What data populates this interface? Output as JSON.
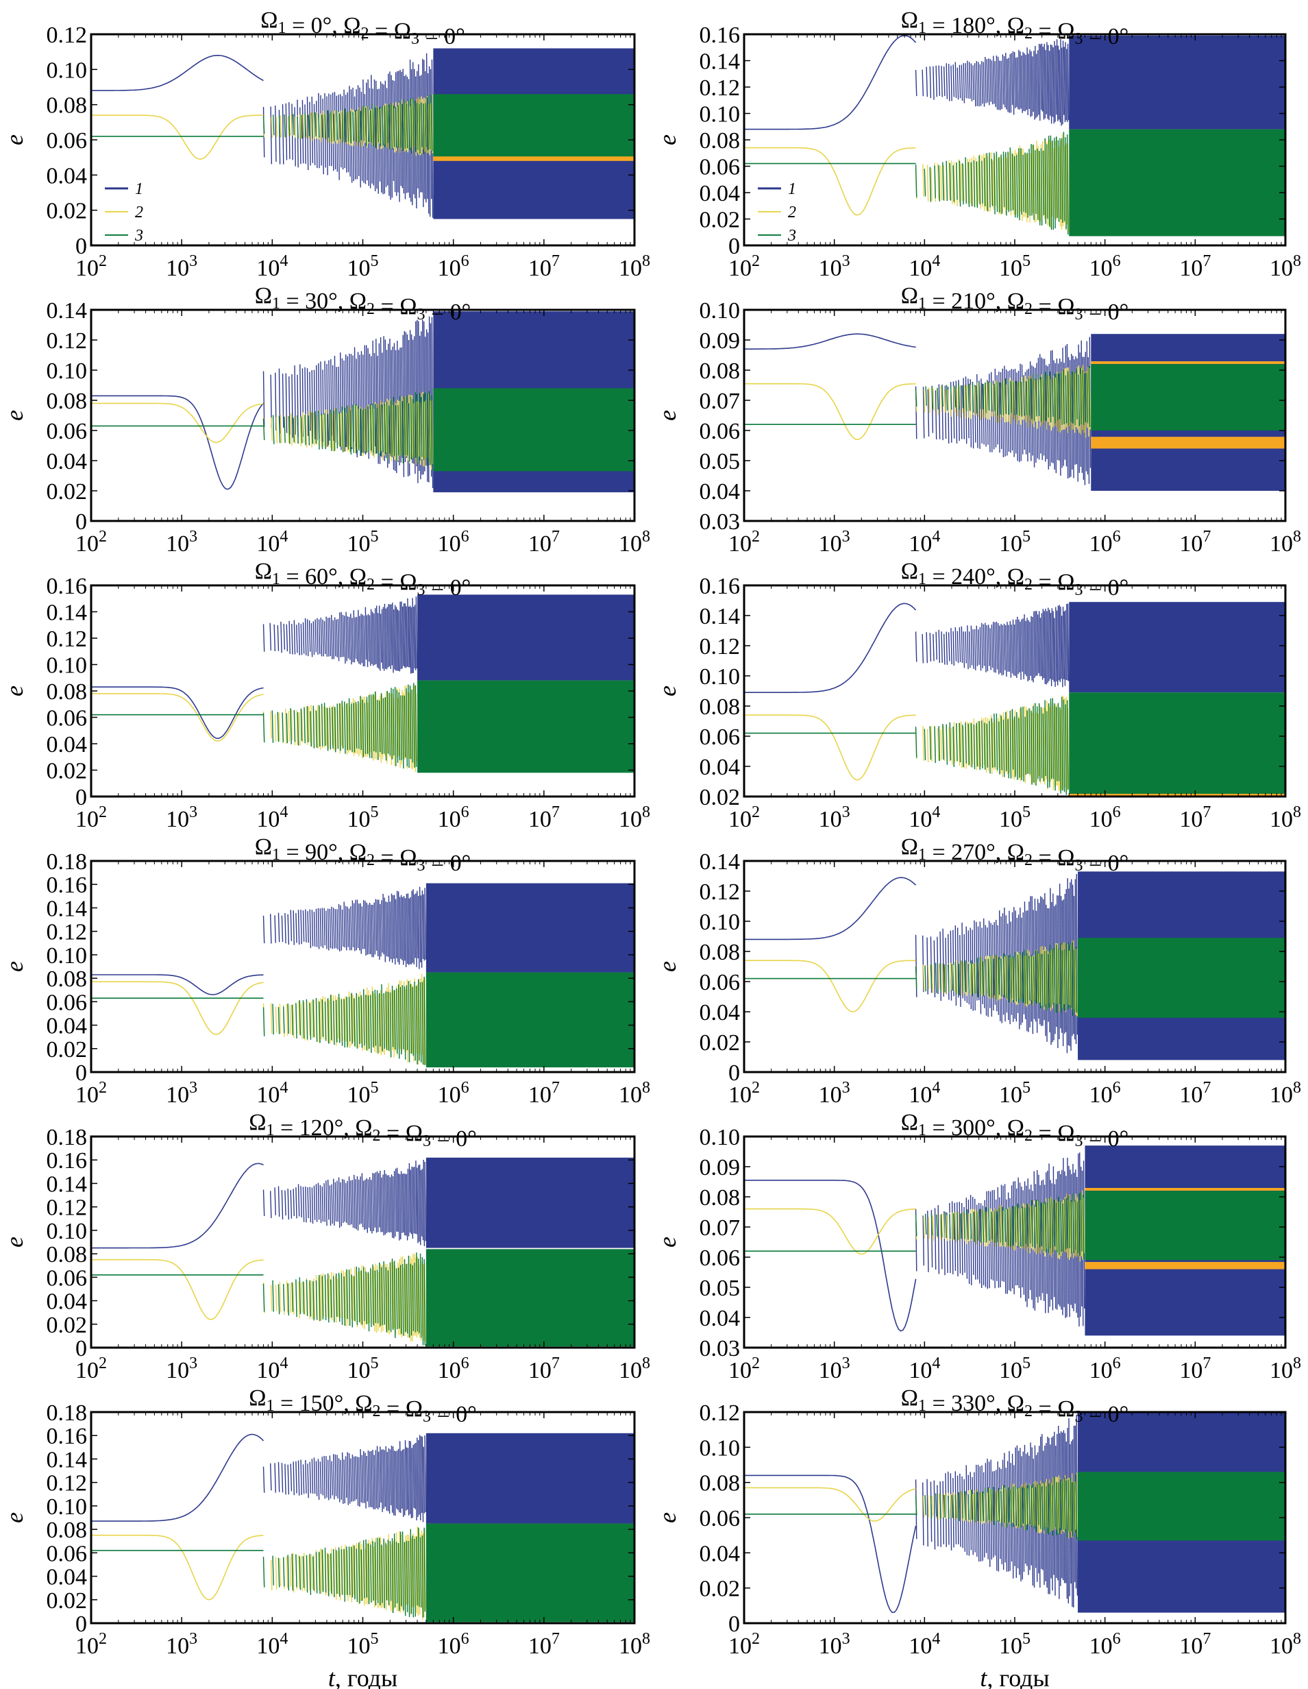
{
  "figure": {
    "xlabel_italic": "t",
    "xlabel_rest": ", годы",
    "ylabel": "e",
    "series_colors": {
      "1": "#2e3a8e",
      "2": "#e8d44a",
      "3": "#0a7a3a",
      "overlap": "#f5a623"
    }
  },
  "chart_data": [
    {
      "id": "p0",
      "type": "line",
      "title": "Ω₁ = 0°, Ω₂ = Ω₃ = 0°",
      "omega1": 0,
      "xscale": "log",
      "xlim": [
        100,
        100000000
      ],
      "ylim": [
        0,
        0.12
      ],
      "yticks": [
        "0",
        "0.02",
        "0.04",
        "0.06",
        "0.08",
        "0.10",
        "0.12"
      ],
      "xticks": [
        "10^2",
        "10^3",
        "10^4",
        "10^5",
        "10^6",
        "10^7",
        "10^8"
      ],
      "xlabel": "",
      "ylabel": "e",
      "legend": {
        "placement": "lower-left",
        "entries": [
          "1",
          "2",
          "3"
        ]
      },
      "series": [
        {
          "name": "1",
          "start": 0.088,
          "early_peak": {
            "t": 2500,
            "e": 0.108
          },
          "first_min": {
            "t": 11000,
            "e": 0.018
          },
          "final_band": [
            0.015,
            0.112
          ]
        },
        {
          "name": "2",
          "start": 0.074,
          "first_min": {
            "t": 1600,
            "e": 0.049
          },
          "final_band": [
            0.049,
            0.086
          ]
        },
        {
          "name": "3",
          "start": 0.062,
          "final_band": [
            0.05,
            0.086
          ]
        }
      ],
      "onset_chaos": 600000
    },
    {
      "id": "p1",
      "type": "line",
      "title": "Ω₁ = 180°, Ω₂ = Ω₃ = 0°",
      "omega1": 180,
      "xscale": "log",
      "xlim": [
        100,
        100000000
      ],
      "ylim": [
        0,
        0.16
      ],
      "yticks": [
        "0",
        "0.02",
        "0.04",
        "0.06",
        "0.08",
        "0.10",
        "0.12",
        "0.14",
        "0.16"
      ],
      "xticks": [
        "10^2",
        "10^3",
        "10^4",
        "10^5",
        "10^6",
        "10^7",
        "10^8"
      ],
      "xlabel": "",
      "ylabel": "e",
      "legend": {
        "placement": "lower-left",
        "entries": [
          "1",
          "2",
          "3"
        ]
      },
      "series": [
        {
          "name": "1",
          "start": 0.088,
          "early_peak": {
            "t": 6000,
            "e": 0.159
          },
          "first_min": {
            "t": 13000,
            "e": 0.062
          },
          "final_band": [
            0.088,
            0.159
          ]
        },
        {
          "name": "2",
          "start": 0.074,
          "first_min": {
            "t": 1800,
            "e": 0.023
          },
          "final_band": [
            0.007,
            0.088
          ]
        },
        {
          "name": "3",
          "start": 0.062,
          "final_band": [
            0.007,
            0.088
          ]
        }
      ],
      "onset_chaos": 400000
    },
    {
      "id": "p2",
      "type": "line",
      "title": "Ω₁ = 30°, Ω₂ = Ω₃ = 0°",
      "omega1": 30,
      "xscale": "log",
      "xlim": [
        100,
        100000000
      ],
      "ylim": [
        0,
        0.14
      ],
      "yticks": [
        "0",
        "0.02",
        "0.04",
        "0.06",
        "0.08",
        "0.10",
        "0.12",
        "0.14"
      ],
      "xticks": [
        "10^2",
        "10^3",
        "10^4",
        "10^5",
        "10^6",
        "10^7",
        "10^8"
      ],
      "xlabel": "",
      "ylabel": "e",
      "legend": null,
      "series": [
        {
          "name": "1",
          "start": 0.083,
          "early_peak": {
            "t": 11000,
            "e": 0.14
          },
          "first_min": {
            "t": 3200,
            "e": 0.021
          },
          "final_band": [
            0.019,
            0.139
          ]
        },
        {
          "name": "2",
          "start": 0.078,
          "first_min": {
            "t": 2400,
            "e": 0.052
          },
          "final_band": [
            0.033,
            0.088
          ]
        },
        {
          "name": "3",
          "start": 0.063,
          "final_band": [
            0.033,
            0.088
          ]
        }
      ],
      "onset_chaos": 600000
    },
    {
      "id": "p3",
      "type": "line",
      "title": "Ω₁ = 210°, Ω₂ = Ω₃ = 0°",
      "omega1": 210,
      "xscale": "log",
      "xlim": [
        100,
        100000000
      ],
      "ylim": [
        0.03,
        0.1
      ],
      "yticks": [
        "0.03",
        "0.04",
        "0.05",
        "0.06",
        "0.07",
        "0.08",
        "0.09",
        "0.10"
      ],
      "xticks": [
        "10^2",
        "10^3",
        "10^4",
        "10^5",
        "10^6",
        "10^7",
        "10^8"
      ],
      "xlabel": "",
      "ylabel": "e",
      "legend": null,
      "series": [
        {
          "name": "1",
          "start": 0.087,
          "early_peak": {
            "t": 1800,
            "e": 0.092
          },
          "first_min": {
            "t": 9000,
            "e": 0.04
          },
          "final_band": [
            0.04,
            0.092
          ]
        },
        {
          "name": "2",
          "start": 0.0755,
          "first_min": {
            "t": 1800,
            "e": 0.057
          },
          "final_band": [
            0.057,
            0.0825
          ]
        },
        {
          "name": "3",
          "start": 0.062,
          "final_band": [
            0.06,
            0.082
          ]
        }
      ],
      "onset_chaos": 700000
    },
    {
      "id": "p4",
      "type": "line",
      "title": "Ω₁ = 60°, Ω₂ = Ω₃ = 0°",
      "omega1": 60,
      "xscale": "log",
      "xlim": [
        100,
        100000000
      ],
      "ylim": [
        0,
        0.16
      ],
      "yticks": [
        "0",
        "0.02",
        "0.04",
        "0.06",
        "0.08",
        "0.10",
        "0.12",
        "0.14",
        "0.16"
      ],
      "xticks": [
        "10^2",
        "10^3",
        "10^4",
        "10^5",
        "10^6",
        "10^7",
        "10^8"
      ],
      "xlabel": "",
      "ylabel": "e",
      "legend": null,
      "series": [
        {
          "name": "1",
          "start": 0.083,
          "early_peak": {
            "t": 11000,
            "e": 0.152
          },
          "first_min": {
            "t": 2500,
            "e": 0.044
          },
          "final_band": [
            0.088,
            0.153
          ]
        },
        {
          "name": "2",
          "start": 0.078,
          "first_min": {
            "t": 2500,
            "e": 0.042
          },
          "final_band": [
            0.018,
            0.088
          ]
        },
        {
          "name": "3",
          "start": 0.062,
          "final_band": [
            0.018,
            0.088
          ]
        }
      ],
      "onset_chaos": 400000
    },
    {
      "id": "p5",
      "type": "line",
      "title": "Ω₁ = 240°, Ω₂ = Ω₃ = 0°",
      "omega1": 240,
      "xscale": "log",
      "xlim": [
        100,
        100000000
      ],
      "ylim": [
        0.02,
        0.16
      ],
      "yticks": [
        "0.02",
        "0.04",
        "0.06",
        "0.08",
        "0.10",
        "0.12",
        "0.14",
        "0.16"
      ],
      "xticks": [
        "10^2",
        "10^3",
        "10^4",
        "10^5",
        "10^6",
        "10^7",
        "10^8"
      ],
      "xlabel": "",
      "ylabel": "e",
      "legend": null,
      "series": [
        {
          "name": "1",
          "start": 0.089,
          "early_peak": {
            "t": 6000,
            "e": 0.148
          },
          "first_min": {
            "t": 13000,
            "e": 0.044
          },
          "final_band": [
            0.089,
            0.149
          ]
        },
        {
          "name": "2",
          "start": 0.074,
          "first_min": {
            "t": 1800,
            "e": 0.031
          },
          "final_band": [
            0.02,
            0.089
          ]
        },
        {
          "name": "3",
          "start": 0.062,
          "final_band": [
            0.02,
            0.089
          ]
        }
      ],
      "onset_chaos": 400000
    },
    {
      "id": "p6",
      "type": "line",
      "title": "Ω₁ = 90°, Ω₂ = Ω₃ = 0°",
      "omega1": 90,
      "xscale": "log",
      "xlim": [
        100,
        100000000
      ],
      "ylim": [
        0,
        0.18
      ],
      "yticks": [
        "0",
        "0.02",
        "0.04",
        "0.06",
        "0.08",
        "0.10",
        "0.12",
        "0.14",
        "0.16",
        "0.18"
      ],
      "xticks": [
        "10^2",
        "10^3",
        "10^4",
        "10^5",
        "10^6",
        "10^7",
        "10^8"
      ],
      "xlabel": "",
      "ylabel": "e",
      "legend": null,
      "series": [
        {
          "name": "1",
          "start": 0.083,
          "early_peak": {
            "t": 10000,
            "e": 0.155
          },
          "first_min": {
            "t": 2200,
            "e": 0.066
          },
          "final_band": [
            0.085,
            0.161
          ]
        },
        {
          "name": "2",
          "start": 0.077,
          "first_min": {
            "t": 2400,
            "e": 0.032
          },
          "final_band": [
            0.004,
            0.085
          ]
        },
        {
          "name": "3",
          "start": 0.063,
          "final_band": [
            0.004,
            0.085
          ]
        }
      ],
      "onset_chaos": 500000
    },
    {
      "id": "p7",
      "type": "line",
      "title": "Ω₁ = 270°, Ω₂ = Ω₃ = 0°",
      "omega1": 270,
      "xscale": "log",
      "xlim": [
        100,
        100000000
      ],
      "ylim": [
        0,
        0.14
      ],
      "yticks": [
        "0",
        "0.02",
        "0.04",
        "0.06",
        "0.08",
        "0.10",
        "0.12",
        "0.14"
      ],
      "xticks": [
        "10^2",
        "10^3",
        "10^4",
        "10^5",
        "10^6",
        "10^7",
        "10^8"
      ],
      "xlabel": "",
      "ylabel": "e",
      "legend": null,
      "series": [
        {
          "name": "1",
          "start": 0.088,
          "early_peak": {
            "t": 5500,
            "e": 0.129
          },
          "first_min": {
            "t": 12000,
            "e": 0.015
          },
          "final_band": [
            0.008,
            0.133
          ]
        },
        {
          "name": "2",
          "start": 0.074,
          "first_min": {
            "t": 1600,
            "e": 0.04
          },
          "final_band": [
            0.036,
            0.089
          ]
        },
        {
          "name": "3",
          "start": 0.062,
          "final_band": [
            0.036,
            0.089
          ]
        }
      ],
      "onset_chaos": 500000
    },
    {
      "id": "p8",
      "type": "line",
      "title": "Ω₁ = 120°, Ω₂ = Ω₃ = 0°",
      "omega1": 120,
      "xscale": "log",
      "xlim": [
        100,
        100000000
      ],
      "ylim": [
        0,
        0.18
      ],
      "yticks": [
        "0",
        "0.02",
        "0.04",
        "0.06",
        "0.08",
        "0.10",
        "0.12",
        "0.14",
        "0.16",
        "0.18"
      ],
      "xticks": [
        "10^2",
        "10^3",
        "10^4",
        "10^5",
        "10^6",
        "10^7",
        "10^8"
      ],
      "xlabel": "",
      "ylabel": "e",
      "legend": null,
      "series": [
        {
          "name": "1",
          "start": 0.085,
          "early_peak": {
            "t": 7000,
            "e": 0.157
          },
          "first_min": {
            "t": 15000,
            "e": 0.075
          },
          "final_band": [
            0.085,
            0.162
          ]
        },
        {
          "name": "2",
          "start": 0.075,
          "first_min": {
            "t": 2100,
            "e": 0.024
          },
          "final_band": [
            0.001,
            0.084
          ]
        },
        {
          "name": "3",
          "start": 0.062,
          "final_band": [
            0.001,
            0.084
          ]
        }
      ],
      "onset_chaos": 500000
    },
    {
      "id": "p9",
      "type": "line",
      "title": "Ω₁ = 300°, Ω₂ = Ω₃ = 0°",
      "omega1": 300,
      "xscale": "log",
      "xlim": [
        100,
        100000000
      ],
      "ylim": [
        0.03,
        0.1
      ],
      "yticks": [
        "0.03",
        "0.04",
        "0.05",
        "0.06",
        "0.07",
        "0.08",
        "0.09",
        "0.10"
      ],
      "xticks": [
        "10^2",
        "10^3",
        "10^4",
        "10^5",
        "10^6",
        "10^7",
        "10^8"
      ],
      "xlabel": "",
      "ylabel": "e",
      "legend": null,
      "series": [
        {
          "name": "1",
          "start": 0.0855,
          "early_peak": {
            "t": 15000,
            "e": 0.095
          },
          "first_min": {
            "t": 5500,
            "e": 0.0355
          },
          "final_band": [
            0.034,
            0.097
          ]
        },
        {
          "name": "2",
          "start": 0.076,
          "first_min": {
            "t": 2000,
            "e": 0.061
          },
          "final_band": [
            0.0575,
            0.0825
          ]
        },
        {
          "name": "3",
          "start": 0.062,
          "final_band": [
            0.059,
            0.082
          ]
        }
      ],
      "onset_chaos": 600000
    },
    {
      "id": "p10",
      "type": "line",
      "title": "Ω₁ = 150°, Ω₂ = Ω₃ = 0°",
      "omega1": 150,
      "xscale": "log",
      "xlim": [
        100,
        100000000
      ],
      "ylim": [
        0,
        0.18
      ],
      "yticks": [
        "0",
        "0.02",
        "0.04",
        "0.06",
        "0.08",
        "0.10",
        "0.12",
        "0.14",
        "0.16",
        "0.18"
      ],
      "xticks": [
        "10^2",
        "10^3",
        "10^4",
        "10^5",
        "10^6",
        "10^7",
        "10^8"
      ],
      "xlabel": "t, годы",
      "ylabel": "e",
      "legend": null,
      "series": [
        {
          "name": "1",
          "start": 0.087,
          "early_peak": {
            "t": 6000,
            "e": 0.161
          },
          "first_min": {
            "t": 15000,
            "e": 0.073
          },
          "final_band": [
            0.085,
            0.162
          ]
        },
        {
          "name": "2",
          "start": 0.075,
          "first_min": {
            "t": 2000,
            "e": 0.02
          },
          "final_band": [
            0.001,
            0.085
          ]
        },
        {
          "name": "3",
          "start": 0.062,
          "final_band": [
            0.001,
            0.085
          ]
        }
      ],
      "onset_chaos": 500000
    },
    {
      "id": "p11",
      "type": "line",
      "title": "Ω₁ = 330°, Ω₂ = Ω₃ = 0°",
      "omega1": 330,
      "xscale": "log",
      "xlim": [
        100,
        100000000
      ],
      "ylim": [
        0,
        0.12
      ],
      "yticks": [
        "0",
        "0.02",
        "0.04",
        "0.06",
        "0.08",
        "0.10",
        "0.12"
      ],
      "xticks": [
        "10^2",
        "10^3",
        "10^4",
        "10^5",
        "10^6",
        "10^7",
        "10^8"
      ],
      "xlabel": "t, годы",
      "ylabel": "e",
      "legend": null,
      "series": [
        {
          "name": "1",
          "start": 0.084,
          "early_peak": {
            "t": 13000,
            "e": 0.119
          },
          "first_min": {
            "t": 4500,
            "e": 0.006
          },
          "final_band": [
            0.006,
            0.12
          ]
        },
        {
          "name": "2",
          "start": 0.077,
          "first_min": {
            "t": 2800,
            "e": 0.058
          },
          "final_band": [
            0.047,
            0.086
          ]
        },
        {
          "name": "3",
          "start": 0.062,
          "final_band": [
            0.047,
            0.086
          ]
        }
      ],
      "onset_chaos": 500000
    }
  ]
}
